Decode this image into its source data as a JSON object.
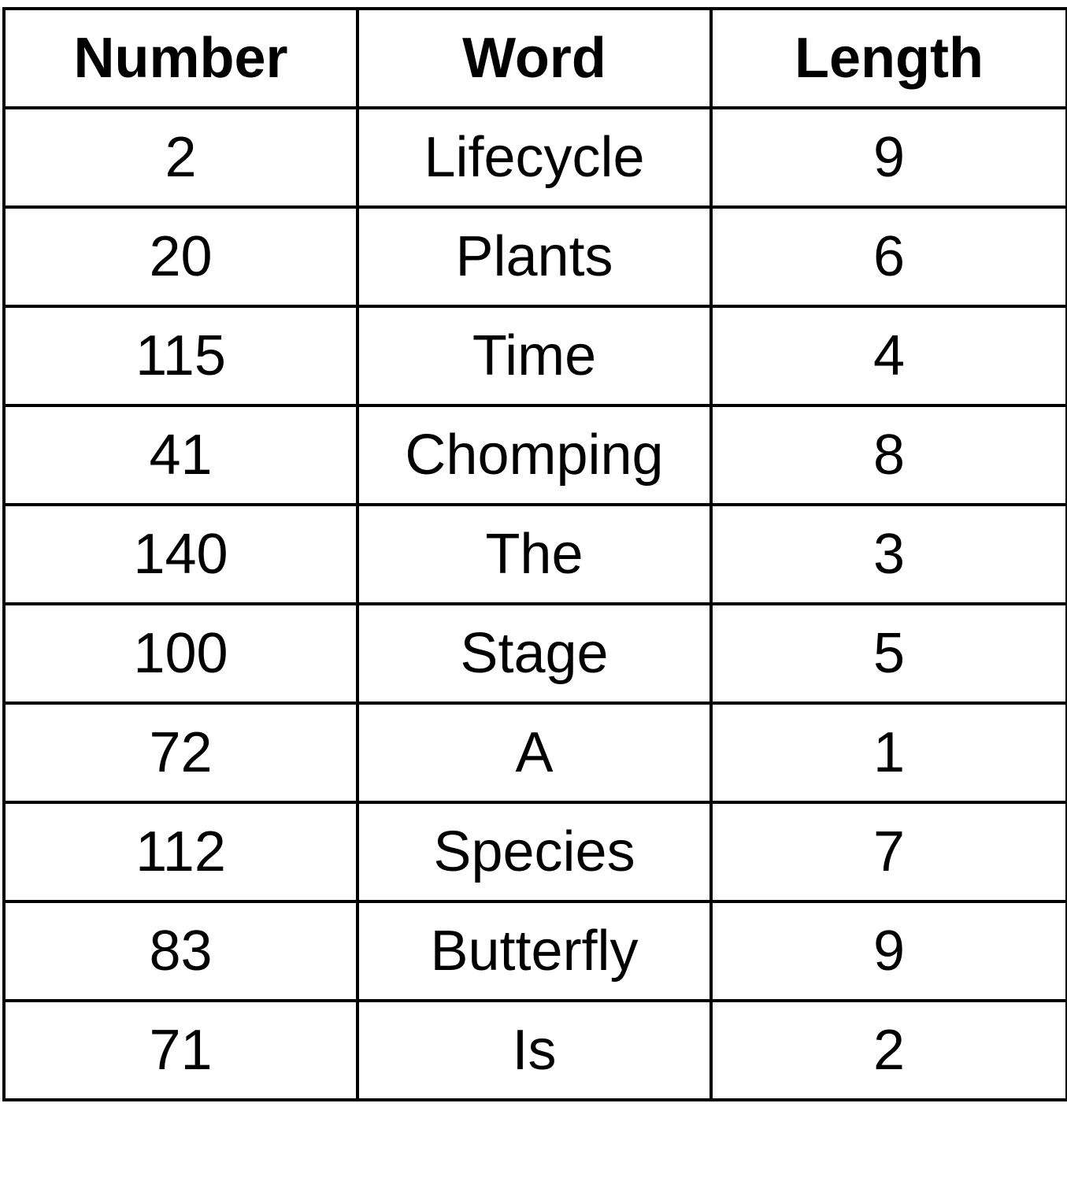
{
  "table": {
    "headers": {
      "number": "Number",
      "word": "Word",
      "length": "Length"
    },
    "rows": [
      {
        "number": "2",
        "word": "Lifecycle",
        "length": "9"
      },
      {
        "number": "20",
        "word": "Plants",
        "length": "6"
      },
      {
        "number": "115",
        "word": "Time",
        "length": "4"
      },
      {
        "number": "41",
        "word": "Chomping",
        "length": "8"
      },
      {
        "number": "140",
        "word": "The",
        "length": "3"
      },
      {
        "number": "100",
        "word": "Stage",
        "length": "5"
      },
      {
        "number": "72",
        "word": "A",
        "length": "1"
      },
      {
        "number": "112",
        "word": "Species",
        "length": "7"
      },
      {
        "number": "83",
        "word": "Butterfly",
        "length": "9"
      },
      {
        "number": "71",
        "word": "Is",
        "length": "2"
      }
    ]
  }
}
